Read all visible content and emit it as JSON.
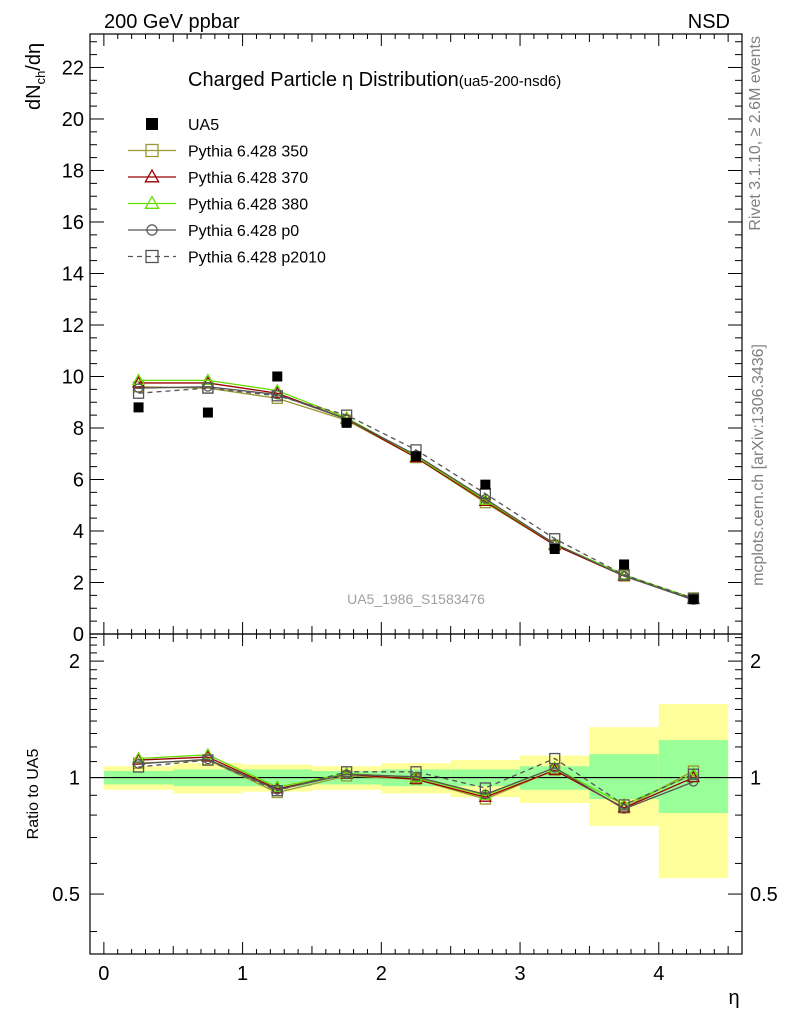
{
  "header": {
    "left": "200 GeV ppbar",
    "right": "NSD",
    "side_rivet": "Rivet 3.1.10, ≥ 2.6M events",
    "side_mcplots": "mcplots.cern.ch [arXiv:1306.3436]"
  },
  "chart_data": {
    "type": "line",
    "title": "Charged Particle",
    "title_eta": "η",
    "title_rest": " Distribution",
    "title_tag": "(ua5-200-nsd6)",
    "ylabel_main": "dN",
    "ylabel_sub": "ch",
    "ylabel_tail": "/dη",
    "ylabel_ratio": "Ratio to UA5",
    "xlabel": "η",
    "watermark": "UA5_1986_S1583476",
    "xlim": [
      -0.1,
      4.6
    ],
    "ylim_main": [
      0,
      23.3
    ],
    "ylim_ratio": [
      0.35,
      2.35
    ],
    "ratio_scale": "log",
    "x_ticks": [
      "0",
      "1",
      "2",
      "3",
      "4"
    ],
    "y_ticks_main": [
      "0",
      "2",
      "4",
      "6",
      "8",
      "10",
      "12",
      "14",
      "16",
      "18",
      "20",
      "22"
    ],
    "y_ticks_ratio": [
      "0.5",
      "1",
      "2"
    ],
    "x": [
      0.25,
      0.75,
      1.25,
      1.75,
      2.25,
      2.75,
      3.25,
      3.75,
      4.25
    ],
    "data": {
      "name": "UA5",
      "values": [
        8.8,
        8.6,
        10.0,
        8.2,
        6.9,
        5.8,
        3.3,
        2.7,
        1.35
      ],
      "band_green": [
        [
          0.96,
          1.04
        ],
        [
          0.95,
          1.05
        ],
        [
          0.95,
          1.05
        ],
        [
          0.96,
          1.04
        ],
        [
          0.95,
          1.05
        ],
        [
          0.95,
          1.05
        ],
        [
          0.93,
          1.07
        ],
        [
          0.88,
          1.15
        ],
        [
          0.81,
          1.25
        ]
      ],
      "band_yellow": [
        [
          0.93,
          1.07
        ],
        [
          0.91,
          1.09
        ],
        [
          0.92,
          1.08
        ],
        [
          0.93,
          1.07
        ],
        [
          0.91,
          1.09
        ],
        [
          0.89,
          1.11
        ],
        [
          0.86,
          1.14
        ],
        [
          0.75,
          1.35
        ],
        [
          0.55,
          1.55
        ]
      ]
    },
    "series": [
      {
        "name": "Pythia 6.428 350",
        "color": "#999933",
        "marker": "square-open",
        "dash": false,
        "values": [
          9.6,
          9.55,
          9.15,
          8.3,
          6.85,
          5.1,
          3.45,
          2.25,
          1.4
        ],
        "ratio": [
          1.09,
          1.11,
          0.915,
          1.01,
          0.99,
          0.88,
          1.045,
          0.835,
          1.04
        ]
      },
      {
        "name": "Pythia 6.428 370",
        "color": "#990000",
        "marker": "triangle-open",
        "dash": false,
        "values": [
          9.75,
          9.75,
          9.35,
          8.35,
          6.85,
          5.15,
          3.45,
          2.25,
          1.35
        ],
        "ratio": [
          1.11,
          1.13,
          0.935,
          1.02,
          0.99,
          0.89,
          1.045,
          0.835,
          1.0
        ]
      },
      {
        "name": "Pythia 6.428 380",
        "color": "#66dd00",
        "marker": "triangle-open",
        "dash": false,
        "values": [
          9.85,
          9.85,
          9.45,
          8.4,
          6.9,
          5.2,
          3.5,
          2.3,
          1.38
        ],
        "ratio": [
          1.12,
          1.145,
          0.945,
          1.025,
          1.0,
          0.9,
          1.06,
          0.85,
          1.02
        ]
      },
      {
        "name": "Pythia 6.428 p0",
        "color": "#555555",
        "marker": "circle-open",
        "dash": false,
        "values": [
          9.55,
          9.6,
          9.3,
          8.35,
          6.95,
          5.25,
          3.5,
          2.25,
          1.32
        ],
        "ratio": [
          1.085,
          1.115,
          0.93,
          1.02,
          1.005,
          0.905,
          1.06,
          0.83,
          0.975
        ]
      },
      {
        "name": "Pythia 6.428 p2010",
        "color": "#555555",
        "marker": "square-open",
        "dash": true,
        "values": [
          9.35,
          9.55,
          9.25,
          8.5,
          7.15,
          5.45,
          3.7,
          2.3,
          1.38
        ],
        "ratio": [
          1.065,
          1.11,
          0.925,
          1.035,
          1.035,
          0.94,
          1.12,
          0.85,
          1.02
        ]
      }
    ]
  }
}
